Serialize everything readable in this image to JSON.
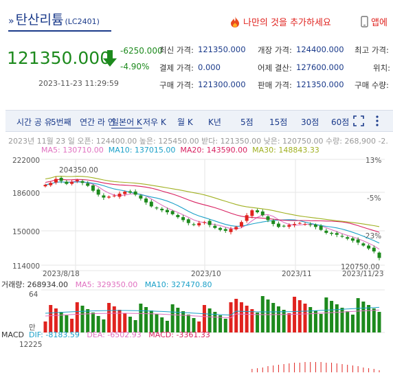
{
  "header": {
    "arrow": "»",
    "title": "탄산리튬",
    "code": "(LC2401)",
    "favorite_label": "나만의 것을 추가하세요",
    "app_label": "앱에"
  },
  "quote": {
    "price": "121350.000",
    "change": "-6250.000",
    "change_pct": "-4.90%",
    "timestamp": "2023-11-23 11:29:59",
    "fields": [
      {
        "label": "최신 가격:",
        "value": "121350.000"
      },
      {
        "label": "개장 가격:",
        "value": "124400.000"
      },
      {
        "label": "최고 가격:",
        "value": ""
      },
      {
        "label": "결제 가격:",
        "value": "0.000"
      },
      {
        "label": "어제 결산:",
        "value": "127600.000"
      },
      {
        "label": "위치:",
        "value": ""
      },
      {
        "label": "구매 가격:",
        "value": "121300.000"
      },
      {
        "label": "판매 가격:",
        "value": "121350.000"
      },
      {
        "label": "구매 수량:",
        "value": ""
      }
    ]
  },
  "tabs": [
    "시간 공 유",
    "5번째",
    "연간 라 인",
    "일본어 K",
    "저우 K",
    "월 K",
    "K년",
    "5점",
    "15점",
    "30점",
    "60점"
  ],
  "ohlc_line": "2023년 11월 23  일 오픈: 124400.00 높은: 125450.00 받다: 121350.00 낮은: 120750.00 수량: 268,900 -2.",
  "ma": {
    "ma5": "MA5: 130710.00",
    "ma10": "MA10: 137015.00",
    "ma20": "MA20: 143590.00",
    "ma30": "MA30: 148843.33"
  },
  "volume_header": {
    "label": "거래량: 268934.00",
    "ma5": "MA5: 329350.00",
    "ma10": "MA10: 327470.80"
  },
  "macd_header": {
    "label": "MACD",
    "dif": "DIF: -8183.59",
    "dea": "DEA: -6502.93",
    "macd": "MACD: -3361.33",
    "scale": "12225"
  },
  "colors": {
    "up": "#e0231f",
    "down": "#1d8a1d",
    "ma5": "#e070c0",
    "ma10": "#1aa0c8",
    "ma20": "#d82060",
    "ma30": "#a0b020"
  },
  "chart_data": {
    "type": "candlestick",
    "y_ticks": [
      "222000",
      "186000",
      "150000",
      "114000"
    ],
    "pct_ticks": [
      "13%",
      "-5%",
      "-23%"
    ],
    "x_ticks": [
      "2023/8/18",
      "2023/10",
      "2023/11",
      "2023/11/23"
    ],
    "annotations": {
      "high": "204350.00",
      "low": "120750.00"
    },
    "volume_ticks": [
      "64",
      "만"
    ],
    "close": [
      196000,
      198000,
      202000,
      200000,
      197000,
      199000,
      201000,
      198000,
      195000,
      190000,
      186000,
      183000,
      184000,
      185000,
      187000,
      189000,
      188000,
      186000,
      182000,
      178000,
      174000,
      172000,
      170000,
      168000,
      166000,
      163000,
      160000,
      157000,
      155000,
      157000,
      158000,
      155000,
      152000,
      150000,
      149000,
      151000,
      153000,
      158000,
      165000,
      170000,
      168000,
      165000,
      160000,
      156000,
      153000,
      154000,
      155000,
      156000,
      157000,
      156000,
      155000,
      153000,
      150000,
      147000,
      146000,
      145000,
      143000,
      141000,
      139000,
      137000,
      134000,
      131000,
      128000,
      121350
    ]
  }
}
